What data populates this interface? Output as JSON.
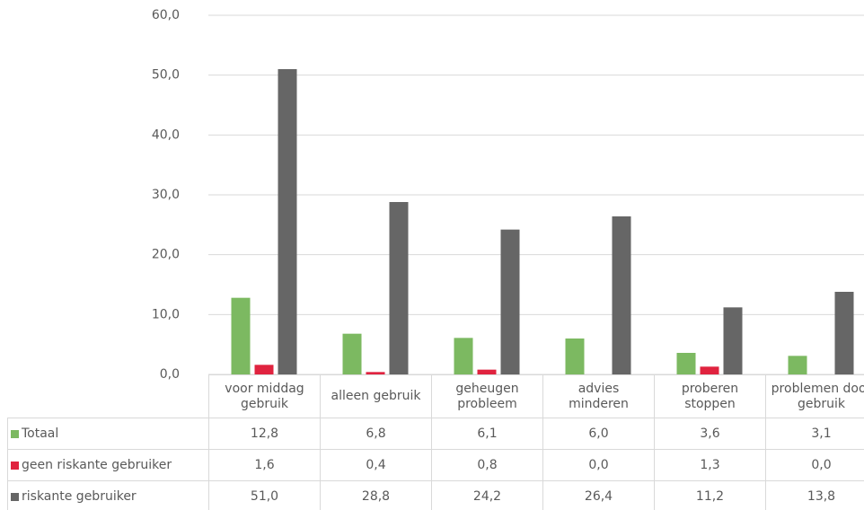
{
  "chart_data": {
    "type": "bar",
    "categories": [
      "voor middag gebruik",
      "alleen gebruik",
      "geheugen probleem",
      "advies minderen",
      "proberen stoppen",
      "problemen door gebruik"
    ],
    "series": [
      {
        "name": "Totaal",
        "color": "#7cb961",
        "values": [
          12.8,
          6.8,
          6.1,
          6.0,
          3.6,
          3.1
        ],
        "value_labels": [
          "12,8",
          "6,8",
          "6,1",
          "6,0",
          "3,6",
          "3,1"
        ]
      },
      {
        "name": "geen riskante gebruiker",
        "color": "#e0233f",
        "values": [
          1.6,
          0.4,
          0.8,
          0.0,
          1.3,
          0.0
        ],
        "value_labels": [
          "1,6",
          "0,4",
          "0,8",
          "0,0",
          "1,3",
          "0,0"
        ]
      },
      {
        "name": "riskante gebruiker",
        "color": "#666666",
        "values": [
          51.0,
          28.8,
          24.2,
          26.4,
          11.2,
          13.8
        ],
        "value_labels": [
          "51,0",
          "28,8",
          "24,2",
          "26,4",
          "11,2",
          "13,8"
        ]
      }
    ],
    "ylim": [
      0,
      60
    ],
    "yticks": [
      {
        "value": 0,
        "label": "0,0"
      },
      {
        "value": 10,
        "label": "10,0"
      },
      {
        "value": 20,
        "label": "20,0"
      },
      {
        "value": 30,
        "label": "30,0"
      },
      {
        "value": 40,
        "label": "40,0"
      },
      {
        "value": 50,
        "label": "50,0"
      },
      {
        "value": 60,
        "label": "60,0"
      }
    ],
    "grid": true
  }
}
